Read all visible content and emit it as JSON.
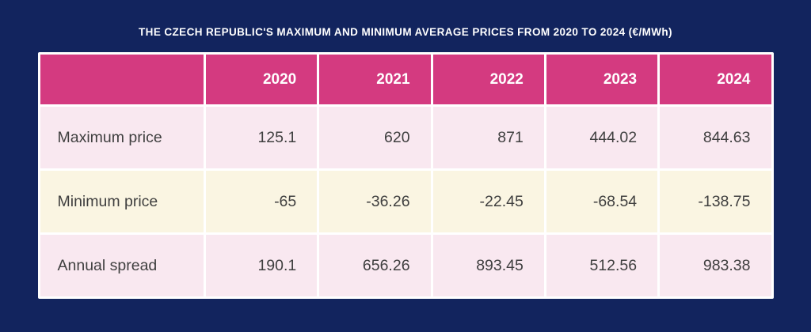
{
  "title": "THE CZECH REPUBLIC'S MAXIMUM AND MINIMUM AVERAGE PRICES FROM 2020 TO 2024 (€/MWh)",
  "colors": {
    "navy": "#12245E",
    "pink": "#D43A80",
    "rowPink": "#F9E8F0",
    "rowCream": "#FAF5E2",
    "cellText": "#3F3F3F",
    "white": "#FFFFFF"
  },
  "table": {
    "header": [
      "",
      "2020",
      "2021",
      "2022",
      "2023",
      "2024"
    ],
    "rows": [
      {
        "label": "Maximum price",
        "values": [
          "125.1",
          "620",
          "871",
          "444.02",
          "844.63"
        ]
      },
      {
        "label": "Minimum price",
        "values": [
          "-65",
          "-36.26",
          "-22.45",
          "-68.54",
          "-138.75"
        ]
      },
      {
        "label": "Annual spread",
        "values": [
          "190.1",
          "656.26",
          "893.45",
          "512.56",
          "983.38"
        ]
      }
    ]
  },
  "chart_data": {
    "type": "table",
    "title": "THE CZECH REPUBLIC'S MAXIMUM AND MINIMUM AVERAGE PRICES FROM 2020 TO 2024 (€/MWh)",
    "unit": "€/MWh",
    "categories": [
      "2020",
      "2021",
      "2022",
      "2023",
      "2024"
    ],
    "series": [
      {
        "name": "Maximum price",
        "values": [
          125.1,
          620,
          871,
          444.02,
          844.63
        ]
      },
      {
        "name": "Minimum price",
        "values": [
          -65,
          -36.26,
          -22.45,
          -68.54,
          -138.75
        ]
      },
      {
        "name": "Annual spread",
        "values": [
          190.1,
          656.26,
          893.45,
          512.56,
          983.38
        ]
      }
    ]
  }
}
